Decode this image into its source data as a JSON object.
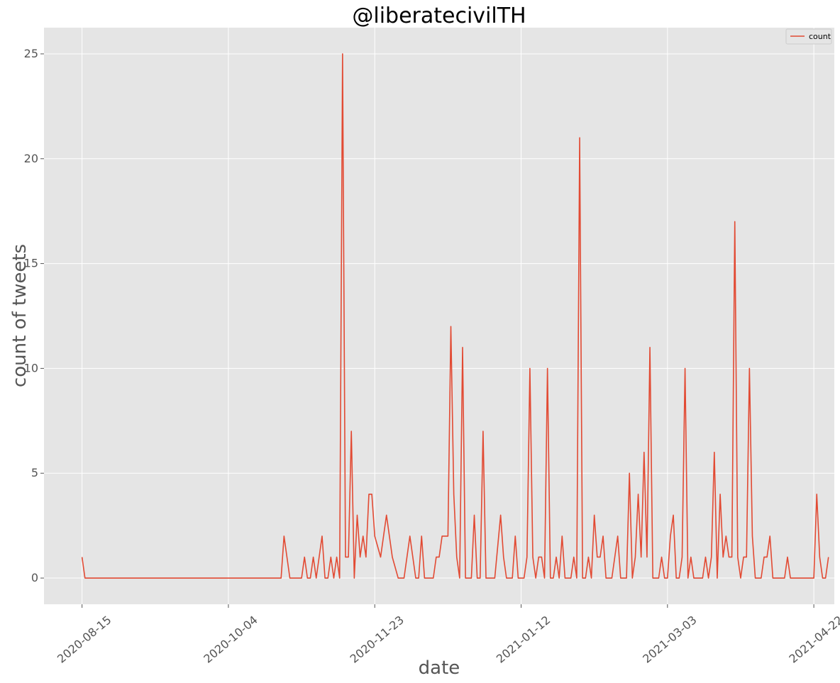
{
  "chart_data": {
    "type": "line",
    "title": "@liberatecivilTH",
    "xlabel": "date",
    "ylabel": "count of tweets",
    "x_ticks": [
      "2020-08-15",
      "2020-10-04",
      "2020-11-23",
      "2021-01-12",
      "2021-03-03",
      "2021-04-22"
    ],
    "y_ticks": [
      0,
      5,
      10,
      15,
      20,
      25
    ],
    "xlim": [
      "2020-08-02",
      "2021-04-29"
    ],
    "ylim": [
      -1.25,
      26.25
    ],
    "grid": true,
    "legend_position": "top-right",
    "series": [
      {
        "name": "count",
        "color": "#e24a33",
        "points": [
          [
            "2020-08-15",
            1
          ],
          [
            "2020-08-16",
            0
          ],
          [
            "2020-10-22",
            0
          ],
          [
            "2020-10-23",
            2
          ],
          [
            "2020-10-25",
            0
          ],
          [
            "2020-10-29",
            0
          ],
          [
            "2020-10-30",
            1
          ],
          [
            "2020-10-31",
            0
          ],
          [
            "2020-11-01",
            0
          ],
          [
            "2020-11-02",
            1
          ],
          [
            "2020-11-03",
            0
          ],
          [
            "2020-11-05",
            2
          ],
          [
            "2020-11-06",
            0
          ],
          [
            "2020-11-07",
            0
          ],
          [
            "2020-11-08",
            1
          ],
          [
            "2020-11-09",
            0
          ],
          [
            "2020-11-10",
            1
          ],
          [
            "2020-11-11",
            0
          ],
          [
            "2020-11-12",
            25
          ],
          [
            "2020-11-13",
            1
          ],
          [
            "2020-11-14",
            1
          ],
          [
            "2020-11-15",
            7
          ],
          [
            "2020-11-16",
            0
          ],
          [
            "2020-11-17",
            3
          ],
          [
            "2020-11-18",
            1
          ],
          [
            "2020-11-19",
            2
          ],
          [
            "2020-11-20",
            1
          ],
          [
            "2020-11-21",
            4
          ],
          [
            "2020-11-22",
            4
          ],
          [
            "2020-11-23",
            2
          ],
          [
            "2020-11-25",
            1
          ],
          [
            "2020-11-27",
            3
          ],
          [
            "2020-11-29",
            1
          ],
          [
            "2020-12-01",
            0
          ],
          [
            "2020-12-03",
            0
          ],
          [
            "2020-12-05",
            2
          ],
          [
            "2020-12-07",
            0
          ],
          [
            "2020-12-08",
            0
          ],
          [
            "2020-12-09",
            2
          ],
          [
            "2020-12-10",
            0
          ],
          [
            "2020-12-13",
            0
          ],
          [
            "2020-12-14",
            1
          ],
          [
            "2020-12-15",
            1
          ],
          [
            "2020-12-16",
            2
          ],
          [
            "2020-12-18",
            2
          ],
          [
            "2020-12-19",
            12
          ],
          [
            "2020-12-20",
            4
          ],
          [
            "2020-12-21",
            1
          ],
          [
            "2020-12-22",
            0
          ],
          [
            "2020-12-23",
            11
          ],
          [
            "2020-12-24",
            0
          ],
          [
            "2020-12-26",
            0
          ],
          [
            "2020-12-27",
            3
          ],
          [
            "2020-12-28",
            0
          ],
          [
            "2020-12-29",
            0
          ],
          [
            "2020-12-30",
            7
          ],
          [
            "2020-12-31",
            0
          ],
          [
            "2021-01-03",
            0
          ],
          [
            "2021-01-05",
            3
          ],
          [
            "2021-01-06",
            1
          ],
          [
            "2021-01-07",
            0
          ],
          [
            "2021-01-09",
            0
          ],
          [
            "2021-01-10",
            2
          ],
          [
            "2021-01-11",
            0
          ],
          [
            "2021-01-13",
            0
          ],
          [
            "2021-01-14",
            1
          ],
          [
            "2021-01-15",
            10
          ],
          [
            "2021-01-16",
            1
          ],
          [
            "2021-01-17",
            0
          ],
          [
            "2021-01-18",
            1
          ],
          [
            "2021-01-19",
            1
          ],
          [
            "2021-01-20",
            0
          ],
          [
            "2021-01-21",
            10
          ],
          [
            "2021-01-22",
            0
          ],
          [
            "2021-01-23",
            0
          ],
          [
            "2021-01-24",
            1
          ],
          [
            "2021-01-25",
            0
          ],
          [
            "2021-01-26",
            2
          ],
          [
            "2021-01-27",
            0
          ],
          [
            "2021-01-29",
            0
          ],
          [
            "2021-01-30",
            1
          ],
          [
            "2021-01-31",
            0
          ],
          [
            "2021-02-01",
            21
          ],
          [
            "2021-02-02",
            0
          ],
          [
            "2021-02-03",
            0
          ],
          [
            "2021-02-04",
            1
          ],
          [
            "2021-02-05",
            0
          ],
          [
            "2021-02-06",
            3
          ],
          [
            "2021-02-07",
            1
          ],
          [
            "2021-02-08",
            1
          ],
          [
            "2021-02-09",
            2
          ],
          [
            "2021-02-10",
            0
          ],
          [
            "2021-02-12",
            0
          ],
          [
            "2021-02-14",
            2
          ],
          [
            "2021-02-15",
            0
          ],
          [
            "2021-02-17",
            0
          ],
          [
            "2021-02-18",
            5
          ],
          [
            "2021-02-19",
            0
          ],
          [
            "2021-02-20",
            1
          ],
          [
            "2021-02-21",
            4
          ],
          [
            "2021-02-22",
            1
          ],
          [
            "2021-02-23",
            6
          ],
          [
            "2021-02-24",
            1
          ],
          [
            "2021-02-25",
            11
          ],
          [
            "2021-02-26",
            0
          ],
          [
            "2021-02-28",
            0
          ],
          [
            "2021-03-01",
            1
          ],
          [
            "2021-03-02",
            0
          ],
          [
            "2021-03-03",
            0
          ],
          [
            "2021-03-04",
            2
          ],
          [
            "2021-03-05",
            3
          ],
          [
            "2021-03-06",
            0
          ],
          [
            "2021-03-07",
            0
          ],
          [
            "2021-03-08",
            1
          ],
          [
            "2021-03-09",
            10
          ],
          [
            "2021-03-10",
            0
          ],
          [
            "2021-03-11",
            1
          ],
          [
            "2021-03-12",
            0
          ],
          [
            "2021-03-15",
            0
          ],
          [
            "2021-03-16",
            1
          ],
          [
            "2021-03-17",
            0
          ],
          [
            "2021-03-18",
            1
          ],
          [
            "2021-03-19",
            6
          ],
          [
            "2021-03-20",
            0
          ],
          [
            "2021-03-21",
            4
          ],
          [
            "2021-03-22",
            1
          ],
          [
            "2021-03-23",
            2
          ],
          [
            "2021-03-24",
            1
          ],
          [
            "2021-03-25",
            1
          ],
          [
            "2021-03-26",
            17
          ],
          [
            "2021-03-27",
            1
          ],
          [
            "2021-03-28",
            0
          ],
          [
            "2021-03-29",
            1
          ],
          [
            "2021-03-30",
            1
          ],
          [
            "2021-03-31",
            10
          ],
          [
            "2021-04-01",
            2
          ],
          [
            "2021-04-02",
            0
          ],
          [
            "2021-04-04",
            0
          ],
          [
            "2021-04-05",
            1
          ],
          [
            "2021-04-06",
            1
          ],
          [
            "2021-04-07",
            2
          ],
          [
            "2021-04-08",
            0
          ],
          [
            "2021-04-12",
            0
          ],
          [
            "2021-04-13",
            1
          ],
          [
            "2021-04-14",
            0
          ],
          [
            "2021-04-21",
            0
          ],
          [
            "2021-04-22",
            0
          ],
          [
            "2021-04-23",
            4
          ],
          [
            "2021-04-24",
            1
          ],
          [
            "2021-04-25",
            0
          ],
          [
            "2021-04-26",
            0
          ],
          [
            "2021-04-27",
            1
          ]
        ]
      }
    ]
  }
}
